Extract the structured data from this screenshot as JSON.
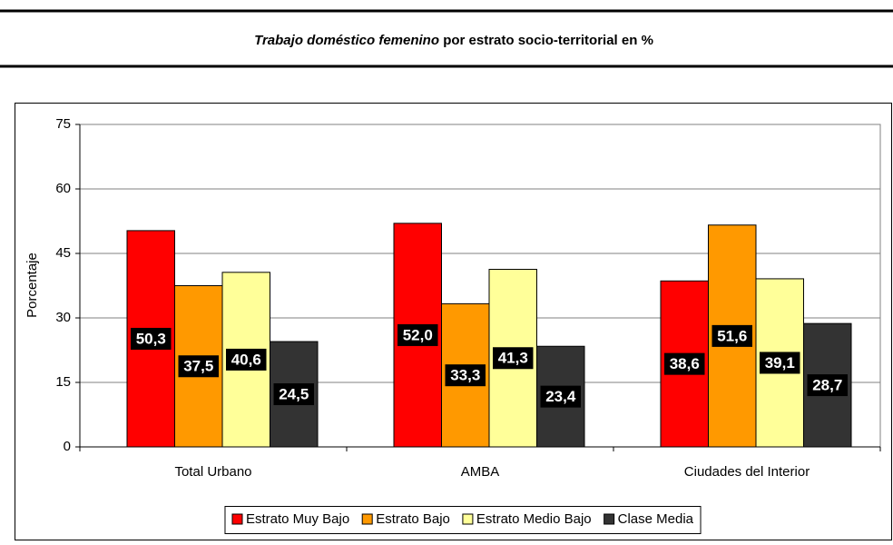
{
  "chart_data": {
    "type": "bar",
    "title_italic": "Trabajo doméstico femenino",
    "title_rest": "por estrato socio-territorial en %",
    "y_label": "Porcentaje",
    "categories": [
      "Total Urbano",
      "AMBA",
      "Ciudades del Interior"
    ],
    "series": [
      {
        "name": "Estrato Muy Bajo",
        "color": "#ff0000",
        "values": [
          50.3,
          52.0,
          38.6
        ],
        "value_labels": [
          "50,3",
          "52,0",
          "38,6"
        ]
      },
      {
        "name": "Estrato Bajo",
        "color": "#ff9900",
        "values": [
          37.5,
          33.3,
          51.6
        ],
        "value_labels": [
          "37,5",
          "33,3",
          "51,6"
        ]
      },
      {
        "name": "Estrato Medio Bajo",
        "color": "#ffff99",
        "values": [
          40.6,
          41.3,
          39.1
        ],
        "value_labels": [
          "40,6",
          "41,3",
          "39,1"
        ]
      },
      {
        "name": "Clase Media",
        "color": "#333333",
        "values": [
          24.5,
          23.4,
          28.7
        ],
        "value_labels": [
          "24,5",
          "23,4",
          "28,7"
        ]
      }
    ],
    "ylim": [
      0,
      75
    ],
    "yticks": [
      0,
      15,
      30,
      45,
      60,
      75
    ],
    "grid": true,
    "legend": "bottom"
  }
}
